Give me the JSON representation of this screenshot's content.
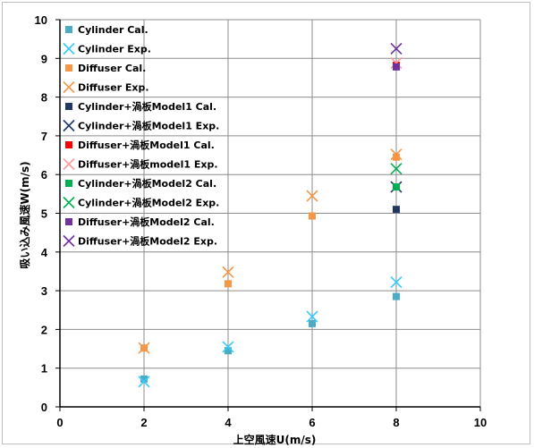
{
  "chart_data": {
    "type": "scatter",
    "title": "",
    "xlabel": "上空風速U(m/s)",
    "ylabel": "吸い込み風速W(m/s)",
    "xlim": [
      0,
      10
    ],
    "ylim": [
      0,
      10
    ],
    "x_ticks": [
      "0",
      "2",
      "4",
      "6",
      "8",
      "10"
    ],
    "y_ticks": [
      "0",
      "1",
      "2",
      "3",
      "4",
      "5",
      "6",
      "7",
      "8",
      "9",
      "10"
    ],
    "grid": true,
    "legend_position": "top-left",
    "series": [
      {
        "name": "Cylinder Cal.",
        "marker": "square",
        "color": "#4bacc6",
        "points": [
          [
            2,
            0.72
          ],
          [
            4,
            1.45
          ],
          [
            6,
            2.15
          ],
          [
            8,
            2.85
          ]
        ]
      },
      {
        "name": "Cylinder Exp.",
        "marker": "x",
        "color": "#33ccff",
        "points": [
          [
            2,
            0.65
          ],
          [
            4,
            1.55
          ],
          [
            6,
            2.33
          ],
          [
            8,
            3.22
          ]
        ]
      },
      {
        "name": "Diffuser Cal.",
        "marker": "square",
        "color": "#f79646",
        "points": [
          [
            2,
            1.52
          ],
          [
            4,
            3.18
          ],
          [
            6,
            4.93
          ],
          [
            8,
            6.45
          ]
        ]
      },
      {
        "name": "Diffuser Exp.",
        "marker": "x",
        "color": "#f79646",
        "points": [
          [
            2,
            1.52
          ],
          [
            4,
            3.48
          ],
          [
            6,
            5.45
          ],
          [
            8,
            6.52
          ]
        ]
      },
      {
        "name": "Cylinder+渦板Model1 Cal.",
        "marker": "square",
        "color": "#1f3864",
        "points": [
          [
            8,
            5.1
          ]
        ]
      },
      {
        "name": "Cylinder+渦板Model1 Exp.",
        "marker": "x",
        "color": "#1f3864",
        "points": [
          [
            8,
            5.68
          ]
        ]
      },
      {
        "name": "Diffuser+渦板Model1 Cal.",
        "marker": "square",
        "color": "#ff0000",
        "points": [
          [
            8,
            8.82
          ]
        ]
      },
      {
        "name": "Diffuser+渦板model1 Exp.",
        "marker": "x",
        "color": "#ff9999",
        "points": [
          [
            8,
            8.88
          ]
        ]
      },
      {
        "name": "Cylinder+渦板Model2 Cal.",
        "marker": "square",
        "color": "#00b050",
        "points": [
          [
            8,
            5.68
          ]
        ]
      },
      {
        "name": "Cylinder+渦板Model2 Exp.",
        "marker": "x",
        "color": "#00b050",
        "points": [
          [
            8,
            6.15
          ]
        ]
      },
      {
        "name": "Diffuser+渦板Model2 Cal.",
        "marker": "square",
        "color": "#7030a0",
        "points": [
          [
            8,
            8.78
          ]
        ]
      },
      {
        "name": "Diffuser+渦板Model2 Exp.",
        "marker": "x",
        "color": "#7030a0",
        "points": [
          [
            8,
            9.25
          ]
        ]
      }
    ]
  }
}
